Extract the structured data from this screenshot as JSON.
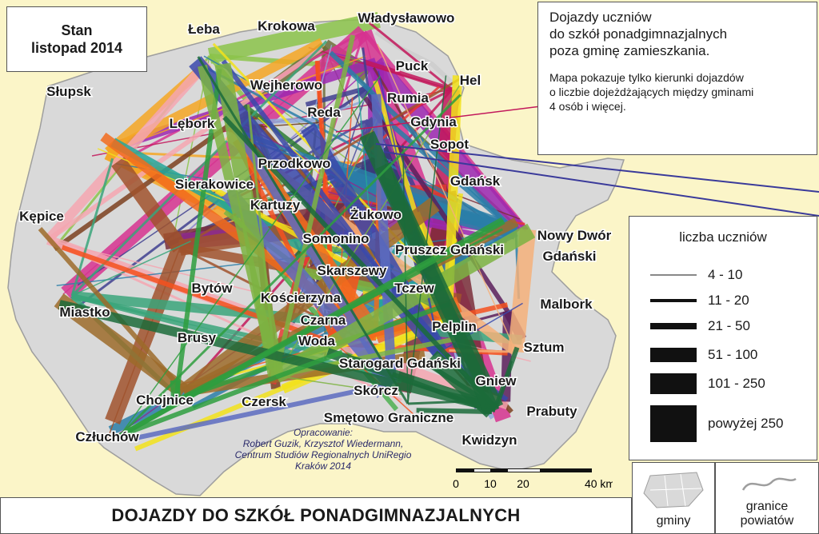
{
  "status": {
    "line1": "Stan",
    "line2": "listopad 2014"
  },
  "header": {
    "title_lines": [
      "Dojazdy uczniów",
      "do szkół ponadgimnazjalnych",
      "poza gminę zamieszkania."
    ],
    "note_lines": [
      "Mapa pokazuje tylko kierunki dojazdów",
      "o liczbie dojeżdżających między gminami",
      "4 osób i więcej."
    ]
  },
  "legend": {
    "title": "liczba uczniów",
    "items": [
      {
        "label": "4 - 10",
        "weight": 1
      },
      {
        "label": "11 - 20",
        "weight": 2
      },
      {
        "label": "21 - 50",
        "weight": 3
      },
      {
        "label": "51 - 100",
        "weight": 4
      },
      {
        "label": "101 - 250",
        "weight": 5
      },
      {
        "label": "powyżej 250",
        "weight": 6
      }
    ],
    "gminy_label": "gminy",
    "granice_label": [
      "granice",
      "powiatów"
    ]
  },
  "scale": {
    "labels": [
      "0",
      "10",
      "20",
      "40 km"
    ]
  },
  "credit": {
    "lines": [
      "Opracowanie:",
      "Robert Guzik, Krzysztof Wiedermann,",
      "Centrum Studiów Regionalnych UniRegio",
      "Kraków 2014"
    ]
  },
  "footer": {
    "title": "DOJAZDY DO SZKÓŁ PONADGIMNAZJALNYCH"
  },
  "cities": [
    {
      "name": "Łeba",
      "color": "#8bc34a"
    },
    {
      "name": "Krokowa",
      "color": "#6d6d3a"
    },
    {
      "name": "Władysławowo",
      "color": "#d6338f"
    },
    {
      "name": "Puck",
      "color": "#9c27b0"
    },
    {
      "name": "Hel",
      "color": "#c2185b"
    },
    {
      "name": "Słupsk",
      "color": "#f5a623"
    },
    {
      "name": "Wejherowo",
      "color": "#7b3f1f"
    },
    {
      "name": "Rumia",
      "color": "#3f3f8f"
    },
    {
      "name": "Reda",
      "color": "#8fa8d8"
    },
    {
      "name": "Gdynia",
      "color": "#4a4a9a"
    },
    {
      "name": "Lębork",
      "color": "#6b3b1b"
    },
    {
      "name": "Sopot",
      "color": "#3a3a7a"
    },
    {
      "name": "Przodkowo",
      "color": "#2e7d32"
    },
    {
      "name": "Gdańsk",
      "color": "#7a2e3a"
    },
    {
      "name": "Sierakowice",
      "color": "#4caf50"
    },
    {
      "name": "Kartuzy",
      "color": "#e53935"
    },
    {
      "name": "Żukowo",
      "color": "#9c27b0"
    },
    {
      "name": "Kępice",
      "color": "#f4a6b0"
    },
    {
      "name": "Somonino",
      "color": "#6aa84f"
    },
    {
      "name": "Nowy Dwór",
      "color": "#2a7ea8"
    },
    {
      "name": "Gdański",
      "color": "#2a7ea8"
    },
    {
      "name": "Pruszcz Gdański",
      "color": "#8e2a8e"
    },
    {
      "name": "Skarszewy",
      "color": "#26a69a"
    },
    {
      "name": "Bytów",
      "color": "#a0522d"
    },
    {
      "name": "Tczew",
      "color": "#f2e21a"
    },
    {
      "name": "Kościerzyna",
      "color": "#7cb342"
    },
    {
      "name": "Malbork",
      "color": "#5a1f5a"
    },
    {
      "name": "Miastko",
      "color": "#3aa57a"
    },
    {
      "name": "Czarna",
      "color": "#f4511e"
    },
    {
      "name": "Woda",
      "color": "#f4511e"
    },
    {
      "name": "Pelplin",
      "color": "#f2e21a"
    },
    {
      "name": "Brusy",
      "color": "#9c6b2a"
    },
    {
      "name": "Sztum",
      "color": "#f4b07a"
    },
    {
      "name": "Starogard Gdański",
      "color": "#f26b1d"
    },
    {
      "name": "Gniew",
      "color": "#3949ab"
    },
    {
      "name": "Skórcz",
      "color": "#5c6bc0"
    },
    {
      "name": "Chojnice",
      "color": "#2e9e3e"
    },
    {
      "name": "Czersk",
      "color": "#7cb342"
    },
    {
      "name": "Prabuty",
      "color": "#1b6b3a"
    },
    {
      "name": "Smętowo Graniczne",
      "color": "#1b6b3a"
    },
    {
      "name": "Kwidzyn",
      "color": "#1b6b3a"
    },
    {
      "name": "Człuchów",
      "color": "#2e9e3e"
    }
  ]
}
